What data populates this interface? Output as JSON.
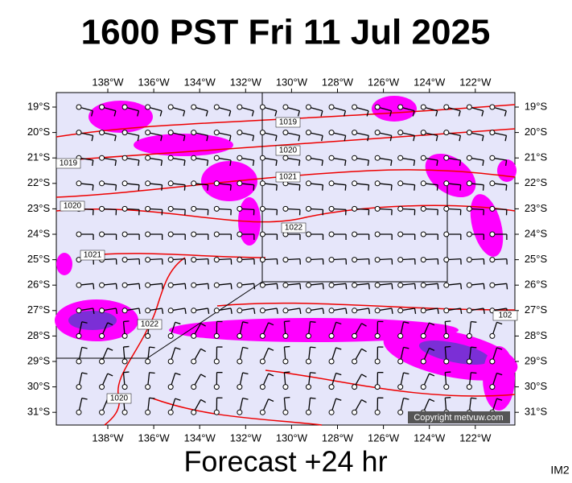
{
  "header": {
    "title": "1600 PST Fri 11 Jul 2025"
  },
  "map": {
    "longitudes": [
      "138°W",
      "136°W",
      "134°W",
      "132°W",
      "130°W",
      "128°W",
      "126°W",
      "124°W",
      "122°W"
    ],
    "latitudes": [
      "19°S",
      "20°S",
      "21°S",
      "22°S",
      "23°S",
      "24°S",
      "25°S",
      "26°S",
      "27°S",
      "28°S",
      "29°S",
      "30°S",
      "31°S"
    ],
    "isobar_labels": [
      "1019",
      "1020",
      "1021",
      "1022",
      "1019",
      "1020",
      "1021",
      "1022",
      "1020",
      "102"
    ],
    "copyright": "Copyright metvuw.com"
  },
  "footer": {
    "caption": "Forecast +24 hr",
    "image_id": "IM2"
  }
}
